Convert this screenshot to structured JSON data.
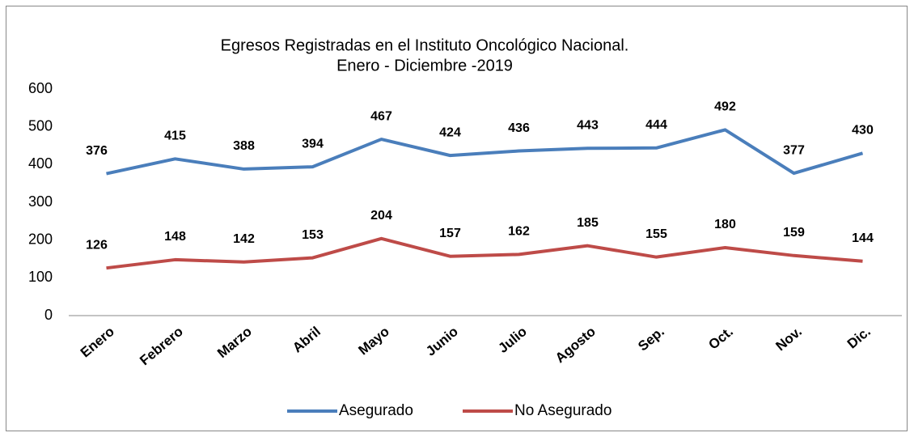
{
  "chart_data": {
    "type": "line",
    "title": [
      "Egresos  Registradas en el Instituto Oncológico Nacional.",
      "Enero - Diciembre -2019"
    ],
    "categories": [
      "Enero",
      "Febrero",
      "Marzo",
      "Abril",
      "Mayo",
      "Junio",
      "Julio",
      "Agosto",
      "Sep.",
      "Oct.",
      "Nov.",
      "Dic."
    ],
    "series": [
      {
        "name": "Asegurado",
        "color": "#4a7ebb",
        "values": [
          376,
          415,
          388,
          394,
          467,
          424,
          436,
          443,
          444,
          492,
          377,
          430
        ]
      },
      {
        "name": "No Asegurado",
        "color": "#be4b48",
        "values": [
          126,
          148,
          142,
          153,
          204,
          157,
          162,
          185,
          155,
          180,
          159,
          144
        ]
      }
    ],
    "ylim": [
      0,
      600
    ],
    "yticks": [
      0,
      100,
      200,
      300,
      400,
      500,
      600
    ],
    "grid": false,
    "legend": "bottom"
  }
}
